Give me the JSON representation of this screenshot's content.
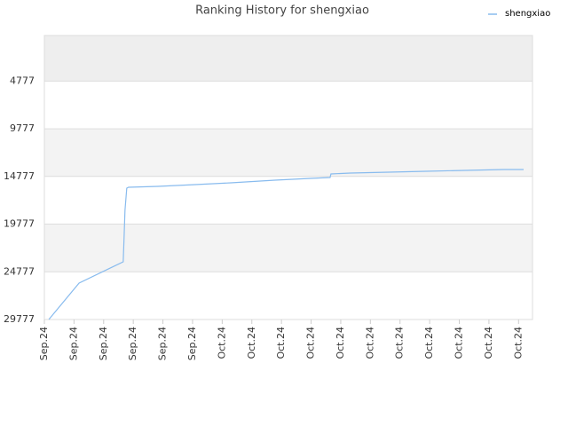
{
  "chart_data": {
    "type": "line",
    "title": "Ranking History for shengxiao",
    "xlim": [
      0,
      16.47
    ],
    "xticks": [
      {
        "value": 0,
        "label": "Sep.24"
      },
      {
        "value": 1,
        "label": "Sep.24"
      },
      {
        "value": 2,
        "label": "Sep.24"
      },
      {
        "value": 3,
        "label": "Sep.24"
      },
      {
        "value": 4,
        "label": "Sep.24"
      },
      {
        "value": 5,
        "label": "Sep.24"
      },
      {
        "value": 6,
        "label": "Oct.24"
      },
      {
        "value": 7,
        "label": "Oct.24"
      },
      {
        "value": 8,
        "label": "Oct.24"
      },
      {
        "value": 9,
        "label": "Oct.24"
      },
      {
        "value": 10,
        "label": "Oct.24"
      },
      {
        "value": 11,
        "label": "Oct.24"
      },
      {
        "value": 12,
        "label": "Oct.24"
      },
      {
        "value": 13,
        "label": "Oct.24"
      },
      {
        "value": 14,
        "label": "Oct.24"
      },
      {
        "value": 15,
        "label": "Oct.24"
      },
      {
        "value": 16,
        "label": "Oct.24"
      }
    ],
    "ylim": [
      29777,
      0
    ],
    "yticks": [
      4777,
      9777,
      14777,
      19777,
      24777,
      29777
    ],
    "grid": true,
    "legend": "top-right",
    "x": [
      0.15,
      1.17,
      2.66,
      2.69,
      2.72,
      2.78,
      2.84,
      3.83,
      5.09,
      6.29,
      7.78,
      8.98,
      9.64,
      9.67,
      10.33,
      11.62,
      12.87,
      14.19,
      15.51,
      16.17
    ],
    "series": [
      {
        "name": "shengxiao",
        "color": "#88bbee",
        "values": [
          29777,
          25961,
          23728,
          21123,
          18331,
          16005,
          15912,
          15819,
          15632,
          15446,
          15167,
          14981,
          14888,
          14516,
          14423,
          14330,
          14237,
          14144,
          14051,
          14051
        ]
      }
    ]
  }
}
